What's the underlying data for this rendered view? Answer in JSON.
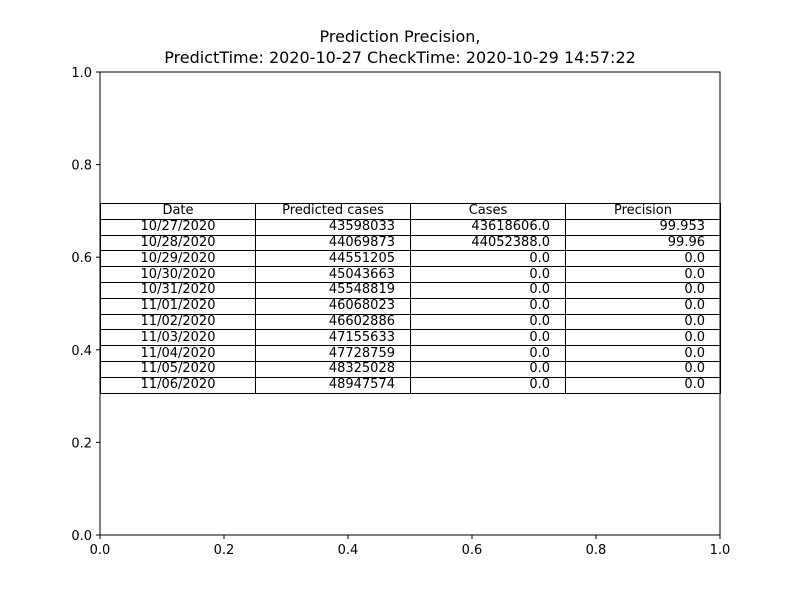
{
  "chart_data": {
    "type": "table",
    "title_line1": "Prediction Precision,",
    "title_line2": "PredictTime: 2020-10-27 CheckTime: 2020-10-29 14:57:22",
    "xlim": [
      0.0,
      1.0
    ],
    "ylim": [
      0.0,
      1.0
    ],
    "x_ticks": [
      "0.0",
      "0.2",
      "0.4",
      "0.6",
      "0.8",
      "1.0"
    ],
    "y_ticks": [
      "0.0",
      "0.2",
      "0.4",
      "0.6",
      "0.8",
      "1.0"
    ],
    "columns": [
      "Date",
      "Predicted cases",
      "Cases",
      "Precision"
    ],
    "rows": [
      [
        "10/27/2020",
        "43598033",
        "43618606.0",
        "99.953"
      ],
      [
        "10/28/2020",
        "44069873",
        "44052388.0",
        "99.96"
      ],
      [
        "10/29/2020",
        "44551205",
        "0.0",
        "0.0"
      ],
      [
        "10/30/2020",
        "45043663",
        "0.0",
        "0.0"
      ],
      [
        "10/31/2020",
        "45548819",
        "0.0",
        "0.0"
      ],
      [
        "11/01/2020",
        "46068023",
        "0.0",
        "0.0"
      ],
      [
        "11/02/2020",
        "46602886",
        "0.0",
        "0.0"
      ],
      [
        "11/03/2020",
        "47155633",
        "0.0",
        "0.0"
      ],
      [
        "11/04/2020",
        "47728759",
        "0.0",
        "0.0"
      ],
      [
        "11/05/2020",
        "48325028",
        "0.0",
        "0.0"
      ],
      [
        "11/06/2020",
        "48947574",
        "0.0",
        "0.0"
      ]
    ]
  }
}
